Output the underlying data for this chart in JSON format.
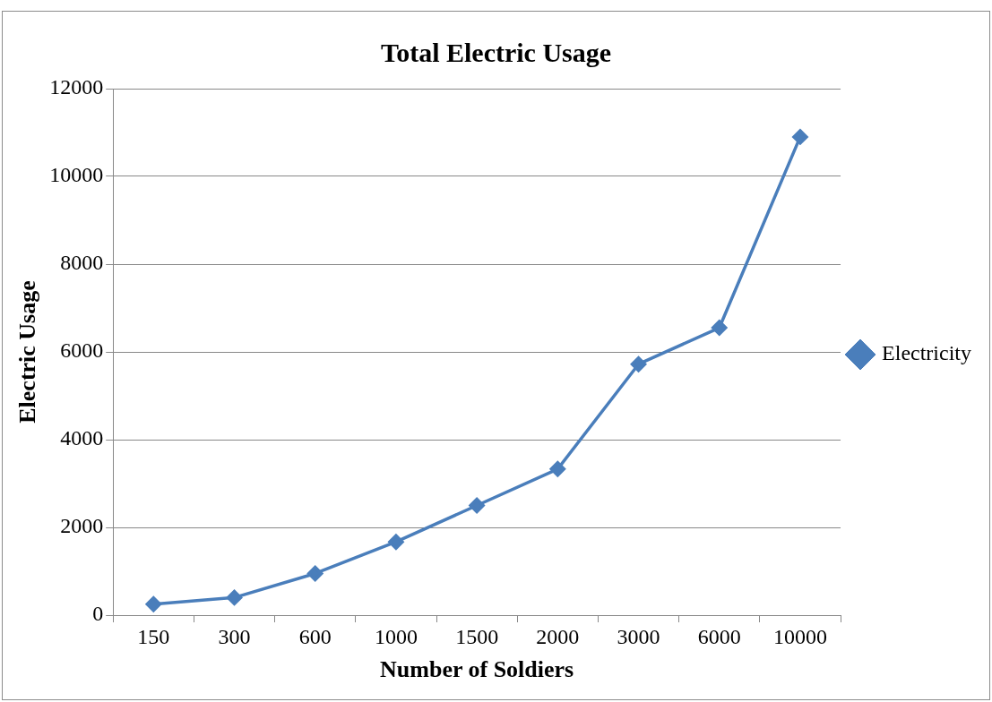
{
  "chart_data": {
    "type": "line",
    "title": "Total Electric Usage",
    "xlabel": "Number of Soldiers",
    "ylabel": "Electric Usage",
    "categories": [
      "150",
      "300",
      "600",
      "1000",
      "1500",
      "2000",
      "3000",
      "6000",
      "10000"
    ],
    "series": [
      {
        "name": "Electricity",
        "color": "#4a7ebb",
        "values": [
          250,
          400,
          950,
          1670,
          2500,
          3330,
          5720,
          6550,
          10900
        ]
      }
    ],
    "ylim": [
      0,
      12000
    ],
    "yticks": [
      0,
      2000,
      4000,
      6000,
      8000,
      10000,
      12000
    ],
    "grid": "y",
    "legend": "right",
    "marker": "diamond",
    "line_style": "solid"
  }
}
